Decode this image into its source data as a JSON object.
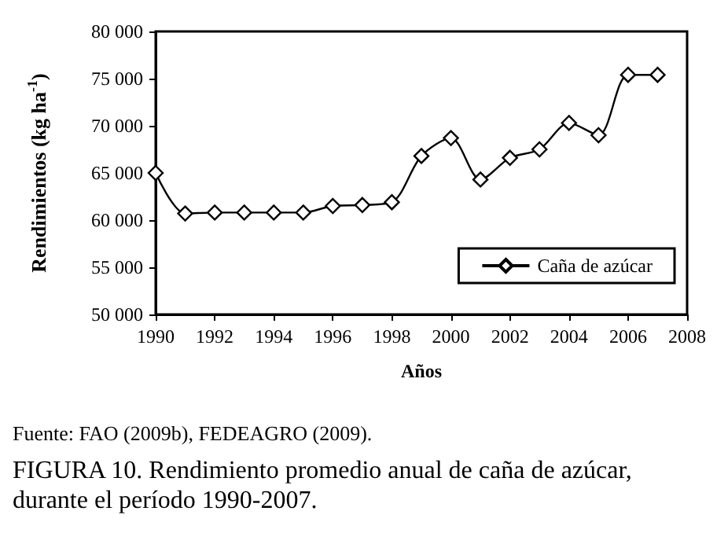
{
  "chart_data": {
    "type": "line",
    "xlabel": "Años",
    "ylabel": "Rendimientos (kg ha$^{-1}$)",
    "x": [
      1990,
      1991,
      1992,
      1993,
      1994,
      1995,
      1996,
      1997,
      1998,
      1999,
      2000,
      2001,
      2002,
      2003,
      2004,
      2005,
      2006,
      2007
    ],
    "series": [
      {
        "name": "Caña de azúcar",
        "color": "#000000",
        "values": [
          65000,
          60700,
          60800,
          60800,
          60800,
          60800,
          61500,
          61600,
          61900,
          66800,
          68700,
          64300,
          66600,
          67500,
          70300,
          69000,
          75400,
          75400
        ]
      }
    ],
    "xlim": [
      1990,
      2008
    ],
    "xticks": [
      1990,
      1992,
      1994,
      1996,
      1998,
      2000,
      2002,
      2004,
      2006,
      2008
    ],
    "ylim": [
      50000,
      80000
    ],
    "yticks": [
      50000,
      55000,
      60000,
      65000,
      70000,
      75000,
      80000
    ],
    "grid": false,
    "legend": "bottom right",
    "marker": "diamond",
    "line_style": "solid",
    "annotations": [
      "Fuente: FAO (2009b), FEDEAGRO (2009).",
      "FIGURA 10. Rendimiento promedio anual de caña de azúcar, durante el período 1990-2007."
    ]
  }
}
